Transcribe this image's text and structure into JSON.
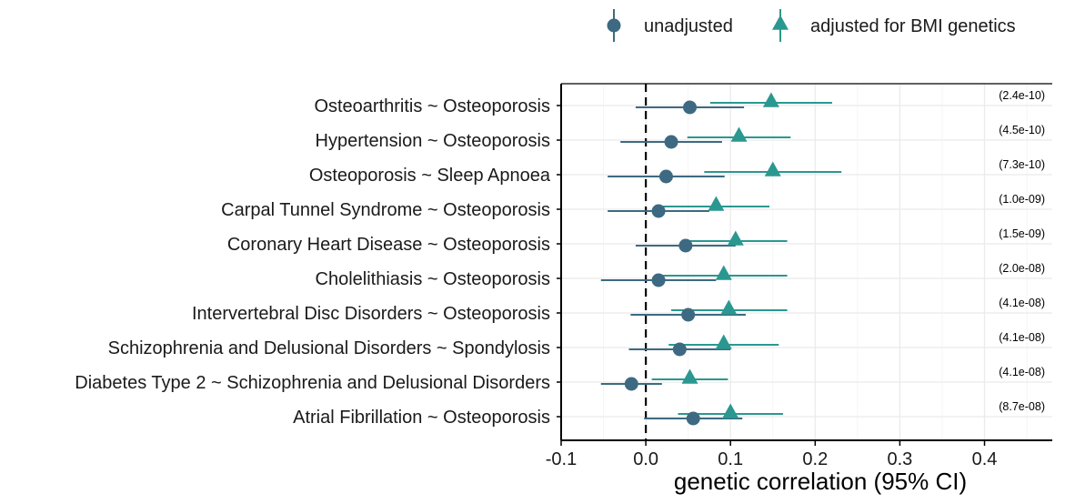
{
  "chart_data": {
    "type": "scatter",
    "subtype": "forest-plot",
    "xlabel": "genetic correlation (95% CI)",
    "xlim": [
      -0.1,
      0.48
    ],
    "xticks": [
      -0.1,
      0,
      0.1,
      0.2,
      0.3,
      0.4
    ],
    "xtick_labels": [
      "-0.1",
      "0.0",
      "0.1",
      "0.2",
      "0.3",
      "0.4"
    ],
    "reference_line": 0,
    "grid": true,
    "legend_position": "top-right",
    "colors": {
      "unadjusted": "#3d6a82",
      "adjusted": "#2a9890",
      "grid": "#ebebeb",
      "axis": "#000000"
    },
    "legend": [
      {
        "key": "unadjusted",
        "label": "unadjusted",
        "marker": "circle"
      },
      {
        "key": "adjusted",
        "label": "adjusted for BMI genetics",
        "marker": "triangle"
      }
    ],
    "categories": [
      "Osteoarthritis  ~ Osteoporosis",
      "Hypertension ~ Osteoporosis",
      "Osteoporosis ~ Sleep Apnoea",
      "Carpal Tunnel Syndrome ~ Osteoporosis",
      "Coronary Heart Disease ~ Osteoporosis",
      "Cholelithiasis ~ Osteoporosis",
      "Intervertebral Disc Disorders ~ Osteoporosis",
      "Schizophrenia and Delusional Disorders ~ Spondylosis",
      "Diabetes Type 2 ~ Schizophrenia and Delusional Disorders",
      "Atrial Fibrillation ~ Osteoporosis"
    ],
    "p_values": [
      "(2.4e-10)",
      "(4.5e-10)",
      "(7.3e-10)",
      "(1.0e-09)",
      "(1.5e-09)",
      "(2.0e-08)",
      "(4.1e-08)",
      "(4.1e-08)",
      "(4.1e-08)",
      "(8.7e-08)"
    ],
    "series": [
      {
        "key": "unadjusted",
        "name": "unadjusted",
        "marker": "circle",
        "values": [
          0.052,
          0.03,
          0.024,
          0.015,
          0.047,
          0.015,
          0.05,
          0.04,
          -0.017,
          0.056
        ],
        "lower": [
          -0.012,
          -0.03,
          -0.045,
          -0.045,
          -0.012,
          -0.053,
          -0.018,
          -0.02,
          -0.053,
          -0.002
        ],
        "upper": [
          0.116,
          0.09,
          0.093,
          0.075,
          0.106,
          0.083,
          0.118,
          0.1,
          0.019,
          0.114
        ]
      },
      {
        "key": "adjusted",
        "name": "adjusted for BMI genetics",
        "marker": "triangle",
        "values": [
          0.148,
          0.11,
          0.15,
          0.083,
          0.106,
          0.092,
          0.098,
          0.092,
          0.052,
          0.1
        ],
        "lower": [
          0.076,
          0.049,
          0.069,
          0.02,
          0.046,
          0.017,
          0.03,
          0.027,
          0.007,
          0.038
        ],
        "upper": [
          0.22,
          0.171,
          0.231,
          0.146,
          0.167,
          0.167,
          0.167,
          0.157,
          0.097,
          0.162
        ]
      }
    ]
  }
}
